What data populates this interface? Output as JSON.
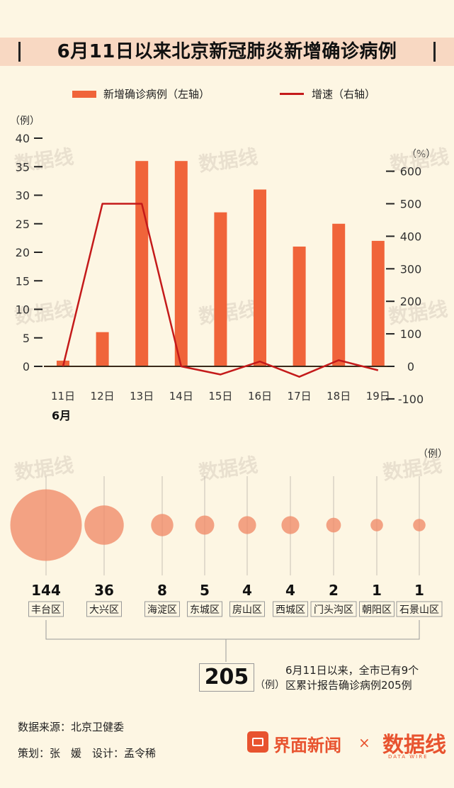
{
  "title": "6月11日以来北京新冠肺炎新增确诊病例",
  "legend": {
    "bar_label": "新增确诊病例（左轴）",
    "line_label": "增速（右轴）"
  },
  "units": {
    "left": "（例）",
    "right": "（%）",
    "bubble": "（例）",
    "total": "（例）"
  },
  "month_label": "6月",
  "colors": {
    "bar": "#f0643a",
    "line": "#c41a1a",
    "bubble": "#f08a68",
    "axis": "#222222",
    "bg": "#fdf6e3",
    "title_band": "#f8d8c2",
    "brand": "#e8532f"
  },
  "chart_data": [
    {
      "type": "bar",
      "categories": [
        "11日",
        "12日",
        "13日",
        "14日",
        "15日",
        "16日",
        "17日",
        "18日",
        "19日"
      ],
      "left_axis": {
        "ticks": [
          0,
          5,
          10,
          15,
          20,
          25,
          30,
          35,
          40
        ],
        "ylim": [
          0,
          40
        ]
      },
      "right_axis": {
        "ticks": [
          -100,
          0,
          100,
          200,
          300,
          400,
          500,
          600
        ],
        "ylim": [
          -100,
          600
        ]
      },
      "series": [
        {
          "name": "新增确诊病例（左轴）",
          "type": "bar",
          "axis": "left",
          "values": [
            1,
            6,
            36,
            36,
            27,
            31,
            21,
            25,
            22
          ]
        },
        {
          "name": "增速（右轴）",
          "type": "line",
          "axis": "right",
          "values": [
            0,
            500,
            500,
            0,
            -25,
            15,
            -32,
            19,
            -12
          ]
        }
      ],
      "grid": false,
      "legend_position": "top"
    },
    {
      "type": "bubble",
      "categories": [
        "丰台区",
        "大兴区",
        "海淀区",
        "东城区",
        "房山区",
        "西城区",
        "门头沟区",
        "朝阳区",
        "石景山区"
      ],
      "values": [
        144,
        36,
        8,
        5,
        4,
        4,
        2,
        1,
        1
      ]
    }
  ],
  "total": {
    "value": "205",
    "note_line1": "6月11日以来，全市已有9个",
    "note_line2": "区累计报告确诊病例205例"
  },
  "footer": {
    "source": "数据来源：北京卫健委",
    "credits": "策划：张　媛　设计：孟令稀"
  },
  "brand": {
    "name": "界面新闻",
    "times": "×",
    "logo": "数据线",
    "logo_sub": "DATA WIRE"
  }
}
